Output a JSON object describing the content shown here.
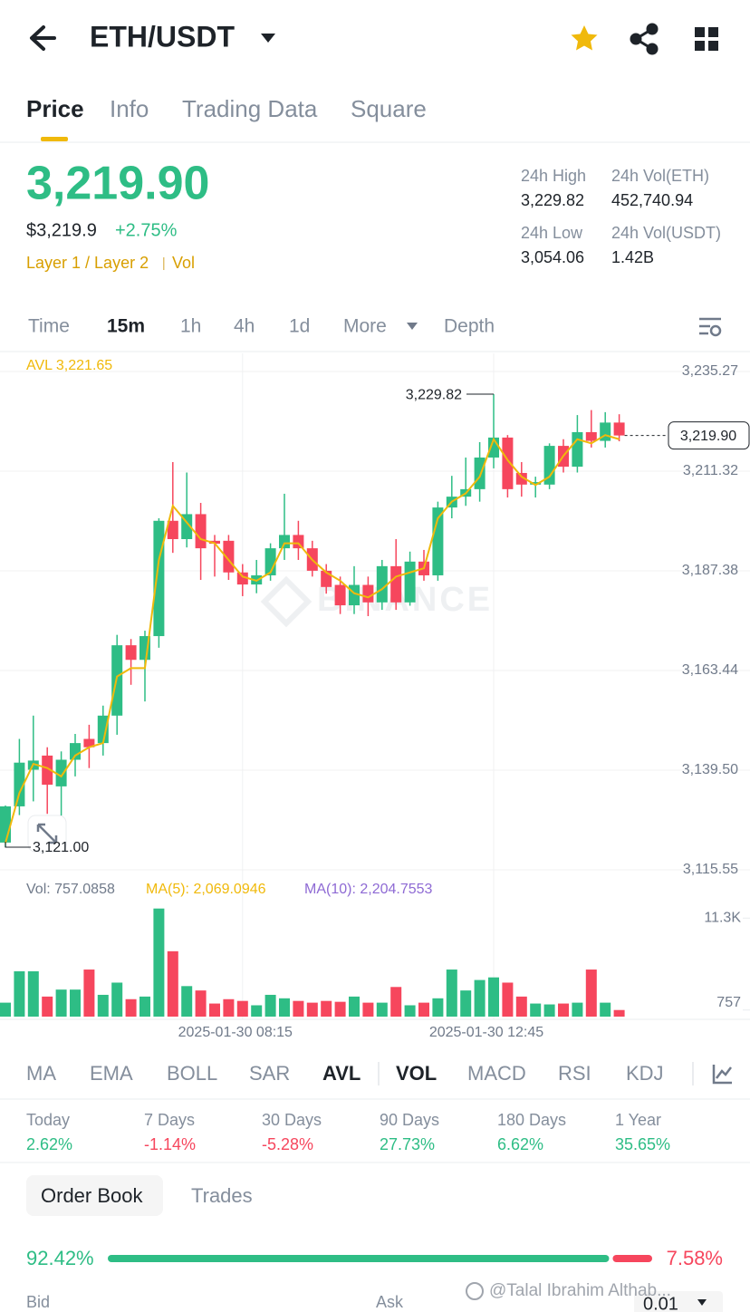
{
  "header": {
    "pair": "ETH/USDT"
  },
  "tabs": [
    "Price",
    "Info",
    "Trading Data",
    "Square"
  ],
  "ticker": {
    "last": "3,219.90",
    "usd": "$3,219.9",
    "change": "+2.75%",
    "tags": [
      "Layer 1 / Layer 2",
      "Vol"
    ],
    "stats": [
      {
        "label": "24h High",
        "value": "3,229.82"
      },
      {
        "label": "24h Vol(ETH)",
        "value": "452,740.94"
      },
      {
        "label": "24h Low",
        "value": "3,054.06"
      },
      {
        "label": "24h Vol(USDT)",
        "value": "1.42B"
      }
    ]
  },
  "intervals": [
    "Time",
    "15m",
    "1h",
    "4h",
    "1d",
    "More",
    "Depth"
  ],
  "chart_data": [
    {
      "type": "candlestick",
      "categories": [
        null,
        null,
        null,
        null,
        null,
        null,
        null,
        null,
        null,
        null,
        null,
        null,
        null,
        null,
        null,
        null,
        null,
        "2025-01-30 08:15",
        null,
        null,
        null,
        null,
        null,
        null,
        null,
        null,
        null,
        null,
        null,
        null,
        null,
        null,
        null,
        null,
        null,
        "2025-01-30 12:45",
        null,
        null,
        null,
        null,
        null,
        null,
        null,
        null,
        null
      ],
      "open": [
        3122.1,
        3130.8,
        3139.6,
        3143,
        3135.6,
        3142,
        3147,
        3146,
        3152.6,
        3169.5,
        3166,
        3171.7,
        3199.4,
        3195,
        3201,
        3194.6,
        3194.6,
        3187,
        3184.1,
        3186.3,
        3192.8,
        3196,
        3192.8,
        3187.4,
        3184,
        3179.1,
        3184,
        3179.8,
        3188.5,
        3179.8,
        3189.6,
        3186.3,
        3202.6,
        3205.2,
        3207,
        3214.6,
        3219.4,
        3210.9,
        3208.1,
        3208.1,
        3217.4,
        3212.4,
        3220.7,
        3218.6,
        3223
      ],
      "close": [
        3130.8,
        3141.3,
        3141.8,
        3136,
        3142,
        3146,
        3145,
        3152.6,
        3169.5,
        3166,
        3171.7,
        3199.4,
        3195,
        3201,
        3192.8,
        3193.9,
        3187,
        3184.1,
        3186.3,
        3192.8,
        3196,
        3192.8,
        3187.4,
        3183.5,
        3179.1,
        3184,
        3179.8,
        3188.5,
        3179.8,
        3189.6,
        3186.3,
        3202.6,
        3205.2,
        3207,
        3214.6,
        3219.4,
        3207,
        3208.1,
        3208.7,
        3217.4,
        3212.4,
        3220.7,
        3218.6,
        3223,
        3219.9
      ],
      "high": [
        3131,
        3147,
        3152.6,
        3145,
        3144,
        3148.2,
        3150.4,
        3155,
        3172,
        3171,
        3173,
        3200,
        3213.5,
        3211,
        3203.7,
        3196,
        3196,
        3189,
        3190,
        3194,
        3205.9,
        3199.4,
        3194.6,
        3189,
        3186,
        3188.5,
        3186,
        3190,
        3195,
        3192,
        3192.4,
        3204,
        3210.2,
        3214.6,
        3218.3,
        3229.82,
        3220,
        3213.5,
        3210,
        3218,
        3219,
        3224.8,
        3226,
        3225.5,
        3225
      ],
      "low": [
        3121,
        3128.7,
        3132,
        3129,
        3128.6,
        3138,
        3140,
        3143,
        3148,
        3160,
        3156,
        3168.9,
        3191.7,
        3193,
        3185.2,
        3186,
        3185.2,
        3181.3,
        3182,
        3185,
        3190,
        3190,
        3186,
        3181.9,
        3177,
        3177,
        3176.5,
        3178,
        3178,
        3179,
        3185,
        3185,
        3200,
        3203,
        3204,
        3212,
        3205,
        3205.2,
        3205,
        3207,
        3211,
        3211,
        3217,
        3217,
        3218.5
      ],
      "up_color": "#2ebd85",
      "down_color": "#f6465d",
      "avl": {
        "name": "AVL 3,221.65",
        "color": "#f0b90b",
        "values": [
          3122,
          3134,
          3141,
          3140,
          3138,
          3143,
          3145,
          3146,
          3162,
          3164,
          3164,
          3190,
          3203,
          3199,
          3195,
          3194,
          3190,
          3186,
          3185,
          3187,
          3194,
          3194,
          3190,
          3187,
          3185,
          3182,
          3181,
          3183,
          3186,
          3187,
          3188,
          3200,
          3204,
          3206,
          3210,
          3219,
          3214,
          3210,
          3208,
          3210,
          3215,
          3219,
          3218,
          3220,
          3219
        ]
      },
      "ylim": [
        3115.55,
        3235.27
      ],
      "yticks": [
        {
          "value": 3235.27,
          "label": "3,235.27"
        },
        {
          "value": 3211.32,
          "label": "3,211.32"
        },
        {
          "value": 3187.38,
          "label": "3,187.38"
        },
        {
          "value": 3163.44,
          "label": "3,163.44"
        },
        {
          "value": 3139.5,
          "label": "3,139.50"
        },
        {
          "value": 3115.55,
          "label": "3,115.55"
        }
      ],
      "high_mark": {
        "value": 3229.82,
        "label": "3,229.82"
      },
      "low_mark": {
        "value": 3121.0,
        "label": "3,121.00"
      },
      "last_price": {
        "value": 3219.9,
        "label": "3,219.90"
      },
      "watermark": "BINANCE",
      "grid": true
    },
    {
      "type": "bar",
      "legend": [
        {
          "label": "Vol: 757.0858",
          "color": "#707a8a"
        },
        {
          "label": "MA(5): 2,069.0946",
          "color": "#f0b90b"
        },
        {
          "label": "MA(10): 2,204.7553",
          "color": "#8e6ad4"
        }
      ],
      "values": [
        1600,
        5200,
        5200,
        2300,
        3100,
        3100,
        5400,
        2500,
        3900,
        2000,
        2300,
        12400,
        7500,
        3500,
        3000,
        1500,
        2000,
        1800,
        1300,
        2500,
        2100,
        1800,
        1600,
        1800,
        1700,
        2300,
        1600,
        1600,
        3400,
        1300,
        1600,
        2100,
        5400,
        3000,
        4200,
        4500,
        3900,
        2300,
        1500,
        1400,
        1500,
        1600,
        5400,
        1600,
        757.0858
      ],
      "ylim": [
        0,
        13200
      ],
      "yticks": [
        {
          "value": 11300,
          "label": "11.3K"
        },
        {
          "value": 757,
          "label": "757"
        }
      ]
    }
  ],
  "indicators": [
    "MA",
    "EMA",
    "BOLL",
    "SAR",
    "AVL",
    "VOL",
    "MACD",
    "RSI",
    "KDJ"
  ],
  "performance": [
    {
      "label": "Today",
      "value": "2.62%"
    },
    {
      "label": "7 Days",
      "value": "-1.14%"
    },
    {
      "label": "30 Days",
      "value": "-5.28%"
    },
    {
      "label": "90 Days",
      "value": "27.73%"
    },
    {
      "label": "180 Days",
      "value": "6.62%"
    },
    {
      "label": "1 Year",
      "value": "35.65%"
    }
  ],
  "order_book": {
    "tabs": [
      "Order Book",
      "Trades"
    ],
    "bid": {
      "value": 92.42,
      "label": "92.42%"
    },
    "ask": {
      "value": 7.58,
      "label": "7.58%"
    },
    "bid_label": "Bid",
    "ask_label": "Ask",
    "precision": "0.01"
  },
  "watermark": "@Talal Ibrahim Althab..."
}
